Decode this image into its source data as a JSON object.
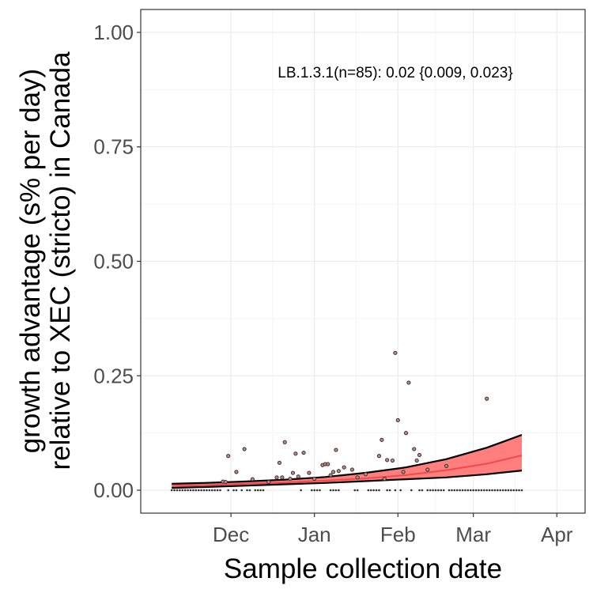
{
  "chart_data": {
    "type": "scatter",
    "title": "",
    "xlabel": "Sample collection date",
    "ylabel_line1": "growth advantage (s% per day)",
    "ylabel_line2": "relative to XEC (stricto) in Canada",
    "annotation": "LB.1.3.1(n=85): 0.02 {0.009, 0.023}",
    "x_unit": "days since 2024-11-01",
    "xlim": [
      -3.5,
      161.5
    ],
    "ylim": [
      -0.05,
      1.05
    ],
    "x_ticks": [
      {
        "label": "Dec",
        "date": "2024-12-01",
        "x": 30
      },
      {
        "label": "Jan",
        "date": "2025-01-01",
        "x": 61
      },
      {
        "label": "Feb",
        "date": "2025-02-01",
        "x": 92
      },
      {
        "label": "Mar",
        "date": "2025-03-01",
        "x": 120
      },
      {
        "label": "Apr",
        "date": "2025-04-01",
        "x": 151
      }
    ],
    "y_ticks": [
      {
        "label": "0.00",
        "value": 0.0
      },
      {
        "label": "0.25",
        "value": 0.25
      },
      {
        "label": "0.50",
        "value": 0.5
      },
      {
        "label": "0.75",
        "value": 0.75
      },
      {
        "label": "1.00",
        "value": 1.0
      }
    ],
    "grid": true,
    "colors": {
      "ribbon": "#ff7f7f",
      "fit_line": "#f04a4a",
      "bound_line": "#000000",
      "point_fill": "#c98484",
      "point_stroke": "#333333"
    },
    "fit": {
      "x": [
        8,
        20,
        35,
        50,
        65,
        80,
        95,
        110,
        125,
        138
      ],
      "y": [
        0.009,
        0.011,
        0.014,
        0.017,
        0.021,
        0.026,
        0.033,
        0.044,
        0.058,
        0.076
      ]
    },
    "ci_upper": {
      "x": [
        8,
        20,
        35,
        50,
        65,
        80,
        95,
        110,
        125,
        138
      ],
      "y": [
        0.014,
        0.016,
        0.019,
        0.023,
        0.029,
        0.038,
        0.05,
        0.068,
        0.093,
        0.121
      ]
    },
    "ci_lower": {
      "x": [
        8,
        20,
        35,
        50,
        65,
        80,
        95,
        110,
        125,
        138
      ],
      "y": [
        0.005,
        0.007,
        0.01,
        0.013,
        0.016,
        0.02,
        0.024,
        0.028,
        0.035,
        0.043
      ]
    },
    "points": [
      {
        "x": 27,
        "y": 0.019
      },
      {
        "x": 28,
        "y": 0.018
      },
      {
        "x": 29,
        "y": 0.075
      },
      {
        "x": 32,
        "y": 0.04
      },
      {
        "x": 35,
        "y": 0.09
      },
      {
        "x": 38,
        "y": 0.024
      },
      {
        "x": 44,
        "y": 0.018
      },
      {
        "x": 47,
        "y": 0.028
      },
      {
        "x": 48,
        "y": 0.06
      },
      {
        "x": 49,
        "y": 0.028
      },
      {
        "x": 50,
        "y": 0.105
      },
      {
        "x": 52,
        "y": 0.025
      },
      {
        "x": 53,
        "y": 0.038
      },
      {
        "x": 54,
        "y": 0.08
      },
      {
        "x": 55,
        "y": 0.03
      },
      {
        "x": 57,
        "y": 0.082
      },
      {
        "x": 59,
        "y": 0.038
      },
      {
        "x": 61,
        "y": 0.025
      },
      {
        "x": 64,
        "y": 0.055
      },
      {
        "x": 65,
        "y": 0.057
      },
      {
        "x": 66,
        "y": 0.057
      },
      {
        "x": 67,
        "y": 0.033
      },
      {
        "x": 68,
        "y": 0.04
      },
      {
        "x": 69,
        "y": 0.088
      },
      {
        "x": 70,
        "y": 0.042
      },
      {
        "x": 72,
        "y": 0.05
      },
      {
        "x": 75,
        "y": 0.045
      },
      {
        "x": 77,
        "y": 0.028
      },
      {
        "x": 80,
        "y": 0.035
      },
      {
        "x": 85,
        "y": 0.075
      },
      {
        "x": 86,
        "y": 0.11
      },
      {
        "x": 87,
        "y": 0.025
      },
      {
        "x": 88,
        "y": 0.066
      },
      {
        "x": 90,
        "y": 0.065
      },
      {
        "x": 91,
        "y": 0.3
      },
      {
        "x": 92,
        "y": 0.153
      },
      {
        "x": 94,
        "y": 0.04
      },
      {
        "x": 95,
        "y": 0.125
      },
      {
        "x": 96,
        "y": 0.235
      },
      {
        "x": 98,
        "y": 0.09
      },
      {
        "x": 99,
        "y": 0.065
      },
      {
        "x": 100,
        "y": 0.077
      },
      {
        "x": 103,
        "y": 0.045
      },
      {
        "x": 110,
        "y": 0.053
      },
      {
        "x": 125,
        "y": 0.2
      }
    ],
    "zero_points_x": [
      8,
      9,
      10,
      11,
      12,
      13,
      14,
      15,
      16,
      17,
      18,
      19,
      20,
      21,
      22,
      23,
      24,
      25,
      26,
      29,
      31,
      32,
      34,
      36,
      37,
      39,
      40,
      41,
      42,
      56,
      60,
      61,
      62,
      63,
      67,
      68,
      69,
      70,
      76,
      77,
      81,
      82,
      83,
      84,
      85,
      88,
      89,
      91,
      93,
      97,
      100,
      101,
      103,
      104,
      105,
      106,
      107,
      108,
      109,
      111,
      112,
      113,
      114,
      115,
      116,
      117,
      118,
      119,
      120,
      121,
      122,
      123,
      124,
      125,
      126,
      127,
      128,
      129,
      130,
      131,
      132,
      133,
      134,
      135,
      136,
      137,
      138
    ]
  }
}
